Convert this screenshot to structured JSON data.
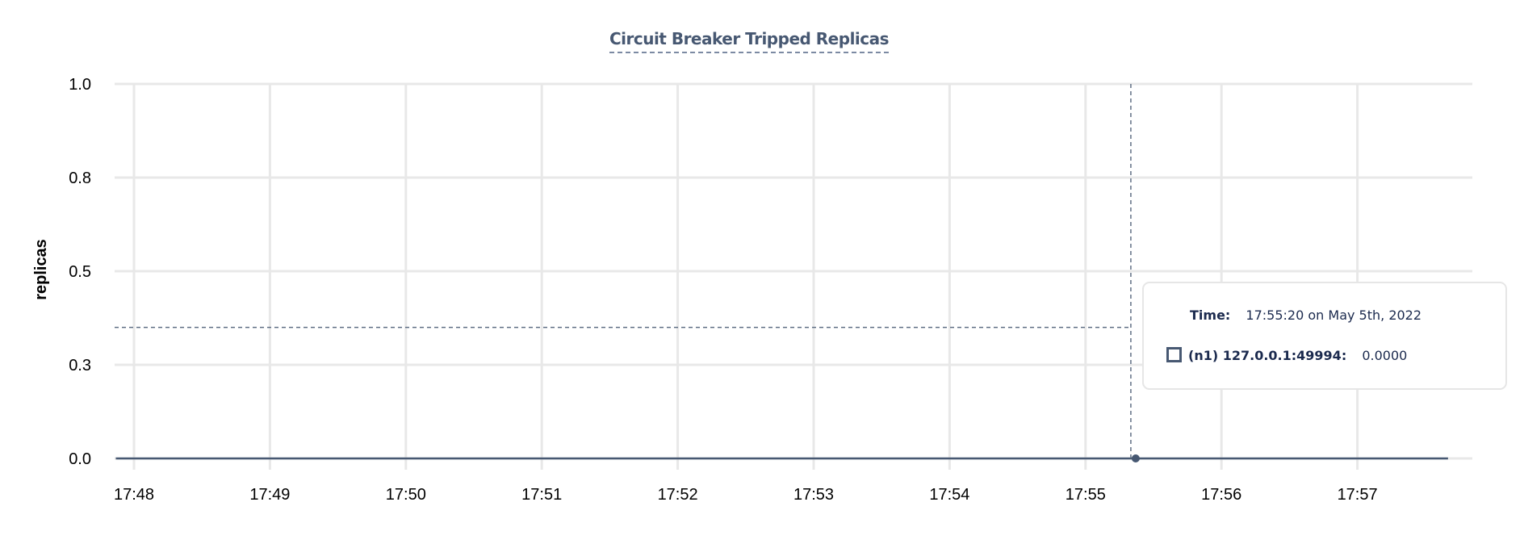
{
  "chart_data": {
    "type": "line",
    "title": "Circuit Breaker Tripped Replicas",
    "xlabel": "",
    "ylabel": "replicas",
    "x_ticks": [
      "17:48",
      "17:49",
      "17:50",
      "17:51",
      "17:52",
      "17:53",
      "17:54",
      "17:55",
      "17:56",
      "17:57"
    ],
    "y_ticks": [
      "0.0",
      "0.3",
      "0.5",
      "0.8",
      "1.0"
    ],
    "ylim": [
      0,
      1
    ],
    "xlim": [
      "17:47:52",
      "17:57:45"
    ],
    "grid": true,
    "series": [
      {
        "name": "(n1) 127.0.0.1:49994",
        "color": "#475872",
        "x": [
          "17:47:52",
          "17:57:40"
        ],
        "y": [
          0,
          0
        ]
      }
    ],
    "hover": {
      "time": "17:55:20",
      "y_value": 0.35
    }
  },
  "tooltip": {
    "time_label": "Time:",
    "time_value": "17:55:20 on May 5th, 2022",
    "series_label": "(n1) 127.0.0.1:49994:",
    "series_value": "0.0000"
  }
}
